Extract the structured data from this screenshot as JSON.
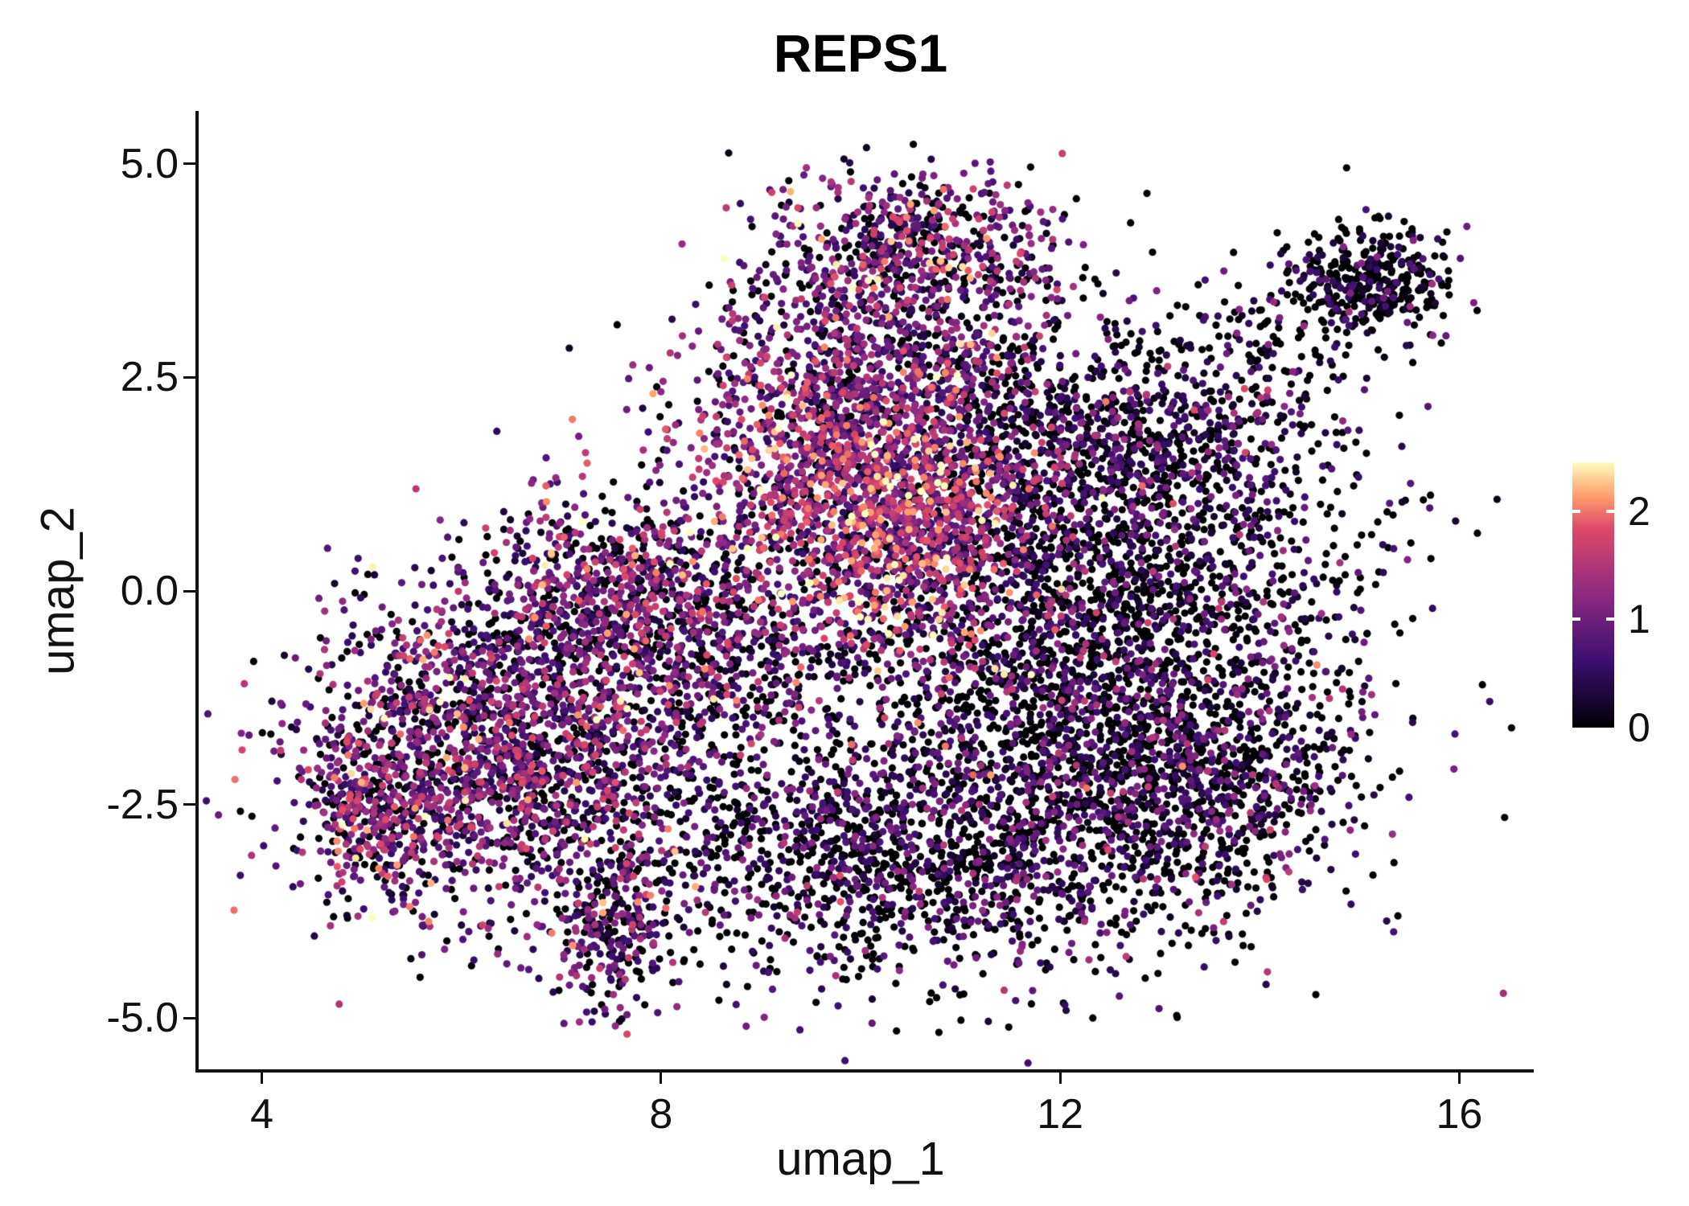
{
  "title": "REPS1",
  "axes": {
    "xlabel": "umap_1",
    "ylabel": "umap_2",
    "x_tick_values": [
      4,
      8,
      12,
      16
    ],
    "x_tick_labels": [
      "4",
      "8",
      "12",
      "16"
    ],
    "y_tick_values": [
      5.0,
      2.5,
      0.0,
      -2.5,
      -5.0
    ],
    "y_tick_labels": [
      "5.0",
      "2.5",
      "0.0",
      "-2.5",
      "-5.0"
    ]
  },
  "colorbar": {
    "tick_values": [
      2,
      1,
      0
    ],
    "tick_labels": [
      "2",
      "1",
      "0"
    ],
    "vmin": 0,
    "vmax": 2.45
  },
  "colors": {
    "background": "#ffffff",
    "axis": "#111111",
    "text": "#111111",
    "colormap_stops": [
      [
        0.0,
        "#000004"
      ],
      [
        0.25,
        "#3b0f70"
      ],
      [
        0.5,
        "#8c2981"
      ],
      [
        0.75,
        "#de4968"
      ],
      [
        0.875,
        "#fe9f6d"
      ],
      [
        1.0,
        "#fcfdbf"
      ]
    ]
  },
  "chart_data": {
    "type": "scatter",
    "title": "REPS1",
    "xlabel": "umap_1",
    "ylabel": "umap_2",
    "xlim": [
      3.35,
      16.73
    ],
    "ylim": [
      -5.6,
      5.6
    ],
    "grid": false,
    "legend_position": "right-colorbar",
    "colormap": "magma",
    "color_range": [
      0,
      2.45
    ],
    "point_radius_px": 4.6,
    "seed": 20240917,
    "clusters": [
      {
        "name": "right-core-low",
        "cx": 12.4,
        "cy": -0.6,
        "sx": 1.3,
        "sy": 1.5,
        "n": 3200,
        "mean": 0.45,
        "sd": 0.5,
        "zero": 0.45
      },
      {
        "name": "right-upper",
        "cx": 12.4,
        "cy": 1.8,
        "sx": 1.1,
        "sy": 0.6,
        "n": 800,
        "mean": 0.55,
        "sd": 0.5,
        "zero": 0.35
      },
      {
        "name": "central-high-expr",
        "cx": 10.35,
        "cy": 0.9,
        "sx": 0.75,
        "sy": 0.85,
        "n": 1300,
        "mean": 1.35,
        "sd": 0.55,
        "zero": 0.08
      },
      {
        "name": "central-mid",
        "cx": 9.6,
        "cy": 2.0,
        "sx": 0.8,
        "sy": 0.7,
        "n": 700,
        "mean": 1.0,
        "sd": 0.55,
        "zero": 0.15
      },
      {
        "name": "top-lobe",
        "cx": 10.5,
        "cy": 4.0,
        "sx": 0.75,
        "sy": 0.45,
        "n": 650,
        "mean": 0.95,
        "sd": 0.6,
        "zero": 0.2
      },
      {
        "name": "top-bridge",
        "cx": 10.3,
        "cy": 2.9,
        "sx": 0.9,
        "sy": 0.5,
        "n": 350,
        "mean": 0.7,
        "sd": 0.5,
        "zero": 0.3
      },
      {
        "name": "left-mass",
        "cx": 6.4,
        "cy": -1.9,
        "sx": 1.0,
        "sy": 0.95,
        "n": 2100,
        "mean": 0.85,
        "sd": 0.6,
        "zero": 0.22
      },
      {
        "name": "left-arm",
        "cx": 7.5,
        "cy": 0.0,
        "sx": 0.7,
        "sy": 0.6,
        "n": 550,
        "mean": 0.9,
        "sd": 0.6,
        "zero": 0.2
      },
      {
        "name": "left-tip",
        "cx": 5.05,
        "cy": -2.5,
        "sx": 0.3,
        "sy": 0.5,
        "n": 220,
        "mean": 1.0,
        "sd": 0.6,
        "zero": 0.15
      },
      {
        "name": "bottom-appendage",
        "cx": 7.5,
        "cy": -4.0,
        "sx": 0.28,
        "sy": 0.5,
        "n": 260,
        "mean": 0.7,
        "sd": 0.55,
        "zero": 0.3
      },
      {
        "name": "bottom-mass",
        "cx": 10.4,
        "cy": -3.1,
        "sx": 1.3,
        "sy": 0.75,
        "n": 1400,
        "mean": 0.5,
        "sd": 0.5,
        "zero": 0.4
      },
      {
        "name": "mid-bridge",
        "cx": 8.6,
        "cy": -0.6,
        "sx": 0.8,
        "sy": 0.9,
        "n": 700,
        "mean": 0.75,
        "sd": 0.55,
        "zero": 0.3
      },
      {
        "name": "right-lower",
        "cx": 13.3,
        "cy": -2.4,
        "sx": 0.7,
        "sy": 0.6,
        "n": 500,
        "mean": 0.5,
        "sd": 0.5,
        "zero": 0.45
      },
      {
        "name": "satellite-topright",
        "cx": 15.1,
        "cy": 3.6,
        "sx": 0.4,
        "sy": 0.32,
        "n": 380,
        "mean": 0.3,
        "sd": 0.45,
        "zero": 0.55
      },
      {
        "name": "sparse-bridge",
        "cx": 13.9,
        "cy": 2.7,
        "sx": 0.5,
        "sy": 0.5,
        "n": 100,
        "mean": 0.3,
        "sd": 0.4,
        "zero": 0.5
      }
    ]
  }
}
